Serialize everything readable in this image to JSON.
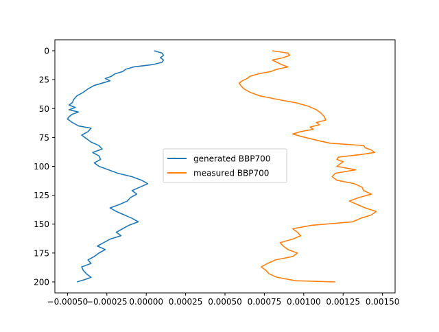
{
  "chart_data": {
    "type": "line",
    "title": "",
    "xlabel": "",
    "ylabel": "",
    "xlim": [
      -0.00058,
      0.00158
    ],
    "ylim": [
      209.5,
      -9.5
    ],
    "y_inverted": true,
    "grid": false,
    "legend_position": "center",
    "x_ticks": [
      -0.0005,
      -0.00025,
      0.0,
      0.00025,
      0.0005,
      0.00075,
      0.001,
      0.00125,
      0.0015
    ],
    "x_tick_labels": [
      "−0.00050",
      "−0.00025",
      "0.00000",
      "0.00025",
      "0.00050",
      "0.00075",
      "0.00100",
      "0.00125",
      "0.00150"
    ],
    "y_ticks": [
      0,
      25,
      50,
      75,
      100,
      125,
      150,
      175,
      200
    ],
    "y_tick_labels": [
      "0",
      "25",
      "50",
      "75",
      "100",
      "125",
      "150",
      "175",
      "200"
    ],
    "series": [
      {
        "name": "generated BBP700",
        "color": "#1f77b4",
        "y": [
          0,
          2,
          4,
          6,
          8,
          10,
          12,
          14,
          16,
          18,
          20,
          22,
          24,
          26,
          28,
          30,
          33,
          36,
          39,
          42,
          45,
          47,
          49,
          51,
          53,
          55,
          57,
          59,
          62,
          65,
          67,
          70,
          73,
          76,
          79,
          82,
          85,
          88,
          91,
          94,
          97,
          100,
          103,
          106,
          109,
          112,
          115,
          118,
          121,
          124,
          127,
          130,
          133,
          136,
          139,
          142,
          145,
          148,
          151,
          154,
          157,
          160,
          163,
          166,
          169,
          172,
          175,
          178,
          181,
          184,
          187,
          190,
          193,
          196,
          198,
          200
        ],
        "values": [
          5e-05,
          0.0001,
          0.00011,
          9e-05,
          0.00011,
          0.0001,
          4e-05,
          -8e-05,
          -0.00013,
          -0.00015,
          -0.0002,
          -0.00022,
          -0.00026,
          -0.00023,
          -0.00028,
          -0.00033,
          -0.00037,
          -0.0004,
          -0.00044,
          -0.00046,
          -0.00047,
          -0.00049,
          -0.00045,
          -0.00049,
          -0.00043,
          -0.00047,
          -0.00049,
          -0.0005,
          -0.00047,
          -0.00043,
          -0.00035,
          -0.00037,
          -0.00041,
          -0.00038,
          -0.00035,
          -0.0003,
          -0.00028,
          -0.00034,
          -0.0003,
          -0.00029,
          -0.00033,
          -0.0003,
          -0.00024,
          -0.00018,
          -9e-05,
          -3e-05,
          1e-05,
          -4e-05,
          -9e-05,
          -6e-05,
          -0.0001,
          -0.00012,
          -0.00017,
          -0.00023,
          -0.00019,
          -0.00014,
          -9e-05,
          -5e-05,
          -0.00011,
          -0.00015,
          -0.00019,
          -0.00016,
          -0.00023,
          -0.00027,
          -0.00031,
          -0.00026,
          -0.0003,
          -0.00033,
          -0.00037,
          -0.00035,
          -0.00041,
          -0.0004,
          -0.00038,
          -0.00035,
          -0.00039,
          -0.00044
        ]
      },
      {
        "name": "measured BBP700",
        "color": "#ff7f0e",
        "y": [
          0,
          2,
          4,
          6,
          8,
          10,
          12,
          14,
          16,
          18,
          20,
          22,
          24,
          26,
          28,
          30,
          33,
          36,
          39,
          42,
          45,
          48,
          51,
          54,
          57,
          60,
          62,
          64,
          66,
          68,
          70,
          72,
          74,
          76,
          78,
          80,
          82,
          84,
          86,
          88,
          90,
          92,
          94,
          96,
          98,
          100,
          103,
          106,
          109,
          112,
          115,
          118,
          121,
          124,
          127,
          130,
          133,
          136,
          139,
          142,
          145,
          148,
          151,
          154,
          157,
          160,
          163,
          166,
          169,
          172,
          175,
          178,
          181,
          184,
          187,
          190,
          193,
          196,
          199,
          200
        ],
        "values": [
          0.0008,
          0.0009,
          0.00091,
          0.00087,
          0.0008,
          0.00083,
          0.00086,
          0.0009,
          0.00083,
          0.00079,
          0.00071,
          0.00066,
          0.00064,
          0.00061,
          0.00059,
          0.0006,
          0.00062,
          0.00066,
          0.00072,
          0.00083,
          0.00095,
          0.00103,
          0.00108,
          0.00111,
          0.00113,
          0.00114,
          0.00108,
          0.0011,
          0.00104,
          0.00106,
          0.00098,
          0.00093,
          0.00098,
          0.00104,
          0.0011,
          0.00117,
          0.00138,
          0.00139,
          0.00143,
          0.00145,
          0.00135,
          0.00122,
          0.00121,
          0.00125,
          0.00123,
          0.00121,
          0.00133,
          0.0012,
          0.00118,
          0.00121,
          0.00132,
          0.00137,
          0.00138,
          0.00143,
          0.00135,
          0.00129,
          0.00134,
          0.00139,
          0.00146,
          0.00143,
          0.00136,
          0.00131,
          0.00105,
          0.00093,
          0.00096,
          0.00098,
          0.00093,
          0.00085,
          0.00087,
          0.0009,
          0.00096,
          0.00093,
          0.00082,
          0.00077,
          0.00073,
          0.00076,
          0.00078,
          0.00083,
          0.00095,
          0.0012
        ]
      }
    ]
  }
}
